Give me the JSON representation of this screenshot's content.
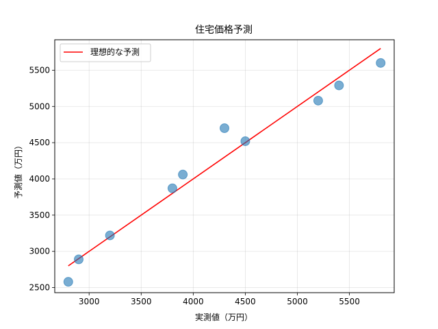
{
  "chart_data": {
    "type": "scatter",
    "title": "住宅価格予測",
    "xlabel": "実測値（万円）",
    "ylabel": "予測値（万円）",
    "xlim": [
      2670,
      5930
    ],
    "ylim": [
      2430,
      5920
    ],
    "xticks": [
      3000,
      3500,
      4000,
      4500,
      5000,
      5500
    ],
    "yticks": [
      2500,
      3000,
      3500,
      4000,
      4500,
      5000,
      5500
    ],
    "grid": true,
    "legend_position": "top-left",
    "series": [
      {
        "kind": "scatter",
        "color": "#1f77b4",
        "points": [
          {
            "x": 2800,
            "y": 2580
          },
          {
            "x": 2900,
            "y": 2890
          },
          {
            "x": 3200,
            "y": 3220
          },
          {
            "x": 3800,
            "y": 3870
          },
          {
            "x": 3900,
            "y": 4060
          },
          {
            "x": 4300,
            "y": 4700
          },
          {
            "x": 4500,
            "y": 4520
          },
          {
            "x": 5200,
            "y": 5080
          },
          {
            "x": 5400,
            "y": 5290
          },
          {
            "x": 5800,
            "y": 5600
          }
        ]
      },
      {
        "kind": "line",
        "name": "理想的な予測",
        "color": "#ff0000",
        "points": [
          {
            "x": 2800,
            "y": 2800
          },
          {
            "x": 5800,
            "y": 5800
          }
        ]
      }
    ]
  }
}
